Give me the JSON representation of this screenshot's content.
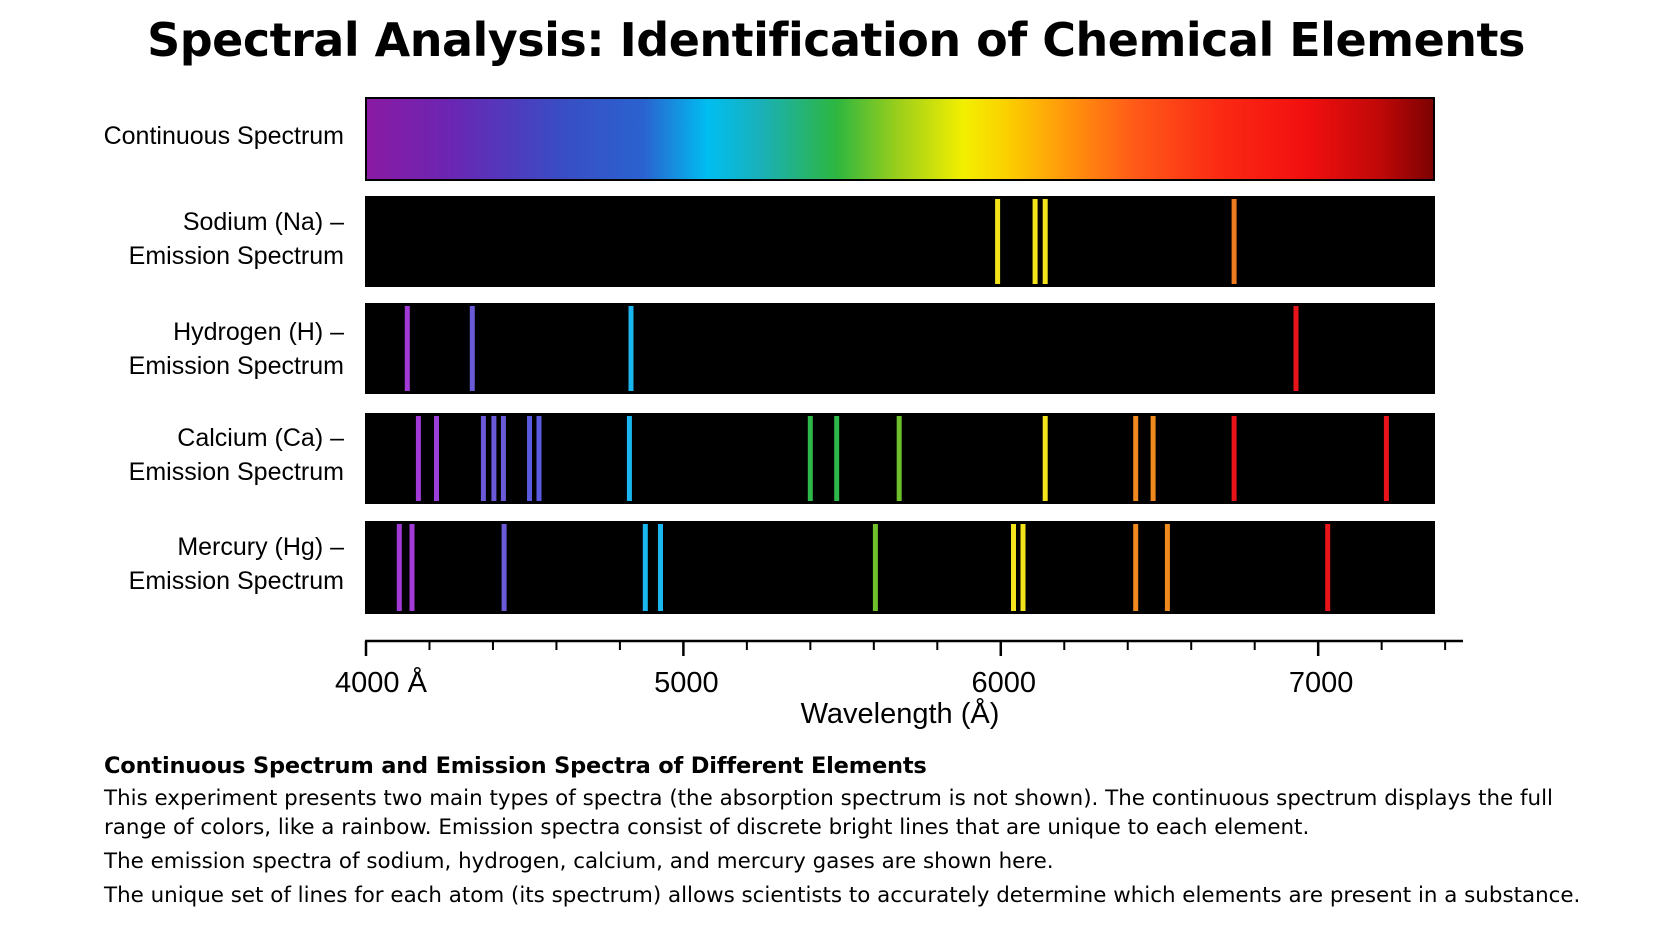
{
  "chart_data": {
    "type": "spectral-lines",
    "title": "Spectral Analysis: Identification of Chemical Elements",
    "xlabel": "Wavelength (Å)",
    "xlim": [
      4000,
      7450
    ],
    "ticks": {
      "major": [
        4000,
        5000,
        6000,
        7000
      ],
      "minor": [
        4200,
        4400,
        4600,
        4800,
        5200,
        5400,
        5600,
        5800,
        6200,
        6400,
        6600,
        6800,
        7200,
        7400
      ],
      "labels": [
        "4000 Å",
        "5000",
        "6000",
        "7000"
      ]
    },
    "continuous": {
      "label": "Continuous Spectrum"
    },
    "spectra": [
      {
        "name": "Sodium (Na) –",
        "subtitle": "Emission Spectrum",
        "lines": [
          {
            "wavelength": 5990,
            "color": "#f2e31a"
          },
          {
            "wavelength": 6108,
            "color": "#f2e31a"
          },
          {
            "wavelength": 6140,
            "color": "#f2e31a"
          },
          {
            "wavelength": 6735,
            "color": "#f07a1e"
          }
        ]
      },
      {
        "name": "Hydrogen (H) –",
        "subtitle": "Emission Spectrum",
        "lines": [
          {
            "wavelength": 4130,
            "color": "#a23ad8"
          },
          {
            "wavelength": 4335,
            "color": "#6a5ad8"
          },
          {
            "wavelength": 4835,
            "color": "#1ab6f0"
          },
          {
            "wavelength": 6930,
            "color": "#e8141a"
          }
        ]
      },
      {
        "name": "Calcium (Ca) –",
        "subtitle": "Emission Spectrum",
        "lines": [
          {
            "wavelength": 4165,
            "color": "#a23ad8"
          },
          {
            "wavelength": 4222,
            "color": "#9a40d8"
          },
          {
            "wavelength": 4370,
            "color": "#6a5ad8"
          },
          {
            "wavelength": 4403,
            "color": "#6a5ad8"
          },
          {
            "wavelength": 4433,
            "color": "#6a5ad8"
          },
          {
            "wavelength": 4515,
            "color": "#5a5ae0"
          },
          {
            "wavelength": 4545,
            "color": "#5a5ae0"
          },
          {
            "wavelength": 4830,
            "color": "#1ab6f0"
          },
          {
            "wavelength": 5400,
            "color": "#2fb84a"
          },
          {
            "wavelength": 5483,
            "color": "#2fb84a"
          },
          {
            "wavelength": 5680,
            "color": "#6ec02a"
          },
          {
            "wavelength": 6140,
            "color": "#f2e31a"
          },
          {
            "wavelength": 6425,
            "color": "#f08a1e"
          },
          {
            "wavelength": 6480,
            "color": "#f08a1e"
          },
          {
            "wavelength": 6735,
            "color": "#e8141a"
          },
          {
            "wavelength": 7215,
            "color": "#e8141a"
          }
        ]
      },
      {
        "name": "Mercury (Hg) –",
        "subtitle": "Emission Spectrum",
        "lines": [
          {
            "wavelength": 4105,
            "color": "#a23ad8"
          },
          {
            "wavelength": 4145,
            "color": "#a23ad8"
          },
          {
            "wavelength": 4435,
            "color": "#6a5ad8"
          },
          {
            "wavelength": 4880,
            "color": "#1ab6f0"
          },
          {
            "wavelength": 4928,
            "color": "#1ab6f0"
          },
          {
            "wavelength": 5605,
            "color": "#6ec02a"
          },
          {
            "wavelength": 6040,
            "color": "#f2e31a"
          },
          {
            "wavelength": 6070,
            "color": "#f2e31a"
          },
          {
            "wavelength": 6425,
            "color": "#f08a1e"
          },
          {
            "wavelength": 6525,
            "color": "#f08a1e"
          },
          {
            "wavelength": 7030,
            "color": "#e8141a"
          }
        ]
      }
    ]
  },
  "description": {
    "heading": "Continuous Spectrum and Emission Spectra of Different Elements",
    "p1": "This experiment presents two main types of spectra (the absorption spectrum is not shown). The continuous spectrum displays the full range of colors, like a rainbow. Emission spectra consist of discrete bright lines that are unique to each element.",
    "p2": "The emission spectra of sodium, hydrogen, calcium, and mercury gases are shown here.",
    "p3": "The unique set of lines for each atom (its spectrum) allows scientists to accurately determine which elements are present in a substance."
  }
}
